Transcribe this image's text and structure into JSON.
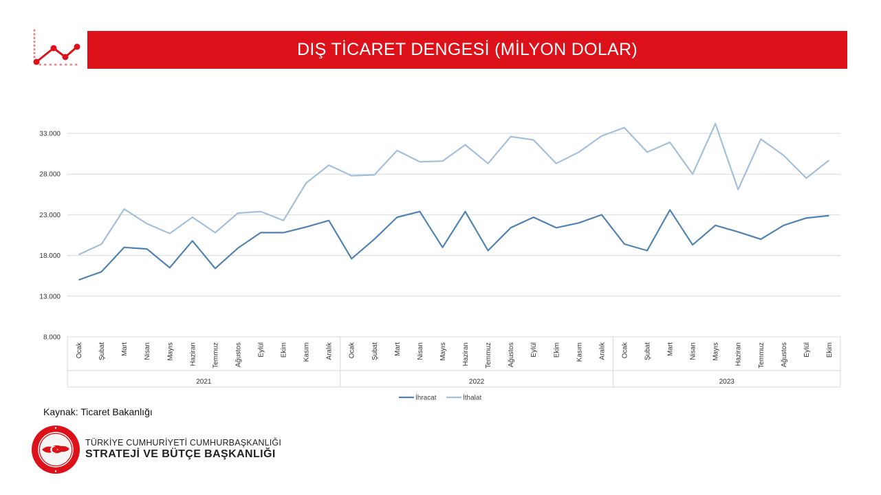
{
  "title": "DIŞ TİCARET DENGESİ (MİLYON DOLAR)",
  "source": "Kaynak: Ticaret Bakanlığı",
  "org": {
    "line1": "TÜRKİYE CUMHURİYETİ CUMHURBAŞKANLIĞI",
    "line2": "STRATEJİ VE BÜTÇE BAŞKANLIĞI"
  },
  "colors": {
    "accent": "#dc1119",
    "ihracat": "#4e82b4",
    "ithalat": "#a2bfdc"
  },
  "chart_data": {
    "type": "line",
    "title": "DIŞ TİCARET DENGESİ (MİLYON DOLAR)",
    "xlabel": "",
    "ylabel": "",
    "ylim": [
      8000,
      33000
    ],
    "yticks": [
      8000,
      13000,
      18000,
      23000,
      28000,
      33000
    ],
    "ytick_labels": [
      "8.000",
      "13.000",
      "18.000",
      "23.000",
      "28.000",
      "33.000"
    ],
    "grid": true,
    "legend_position": "bottom",
    "groups": [
      {
        "label": "2021",
        "months": [
          "Ocak",
          "Şubat",
          "Mart",
          "Nisan",
          "Mayıs",
          "Haziran",
          "Temmuz",
          "Ağustos",
          "Eylül",
          "Ekim",
          "Kasım",
          "Aralık"
        ]
      },
      {
        "label": "2022",
        "months": [
          "Ocak",
          "Şubat",
          "Mart",
          "Nisan",
          "Mayıs",
          "Haziran",
          "Temmuz",
          "Ağustos",
          "Eylül",
          "Ekim",
          "Kasım",
          "Aralık"
        ]
      },
      {
        "label": "2023",
        "months": [
          "Ocak",
          "Şubat",
          "Mart",
          "Nisan",
          "Mayıs",
          "Haziran",
          "Temmuz",
          "Ağustos",
          "Eylül",
          "Ekim"
        ]
      }
    ],
    "series": [
      {
        "name": "İhracat",
        "values": [
          15000,
          16000,
          19000,
          18800,
          16500,
          19800,
          16400,
          18900,
          20800,
          20800,
          21500,
          22300,
          17600,
          20000,
          22700,
          23400,
          19000,
          23400,
          18600,
          21400,
          22700,
          21400,
          22000,
          23000,
          19400,
          18600,
          23600,
          19300,
          21700,
          20900,
          20000,
          21700,
          22600,
          22900
        ]
      },
      {
        "name": "İthalat",
        "values": [
          18100,
          19400,
          23700,
          21900,
          20700,
          22700,
          20800,
          23200,
          23400,
          22300,
          26900,
          29100,
          27800,
          27900,
          30900,
          29500,
          29600,
          31600,
          29300,
          32600,
          32200,
          29300,
          30700,
          32700,
          33700,
          30700,
          31900,
          28000,
          34200,
          26100,
          32300,
          30300,
          27500,
          29700
        ]
      }
    ]
  }
}
